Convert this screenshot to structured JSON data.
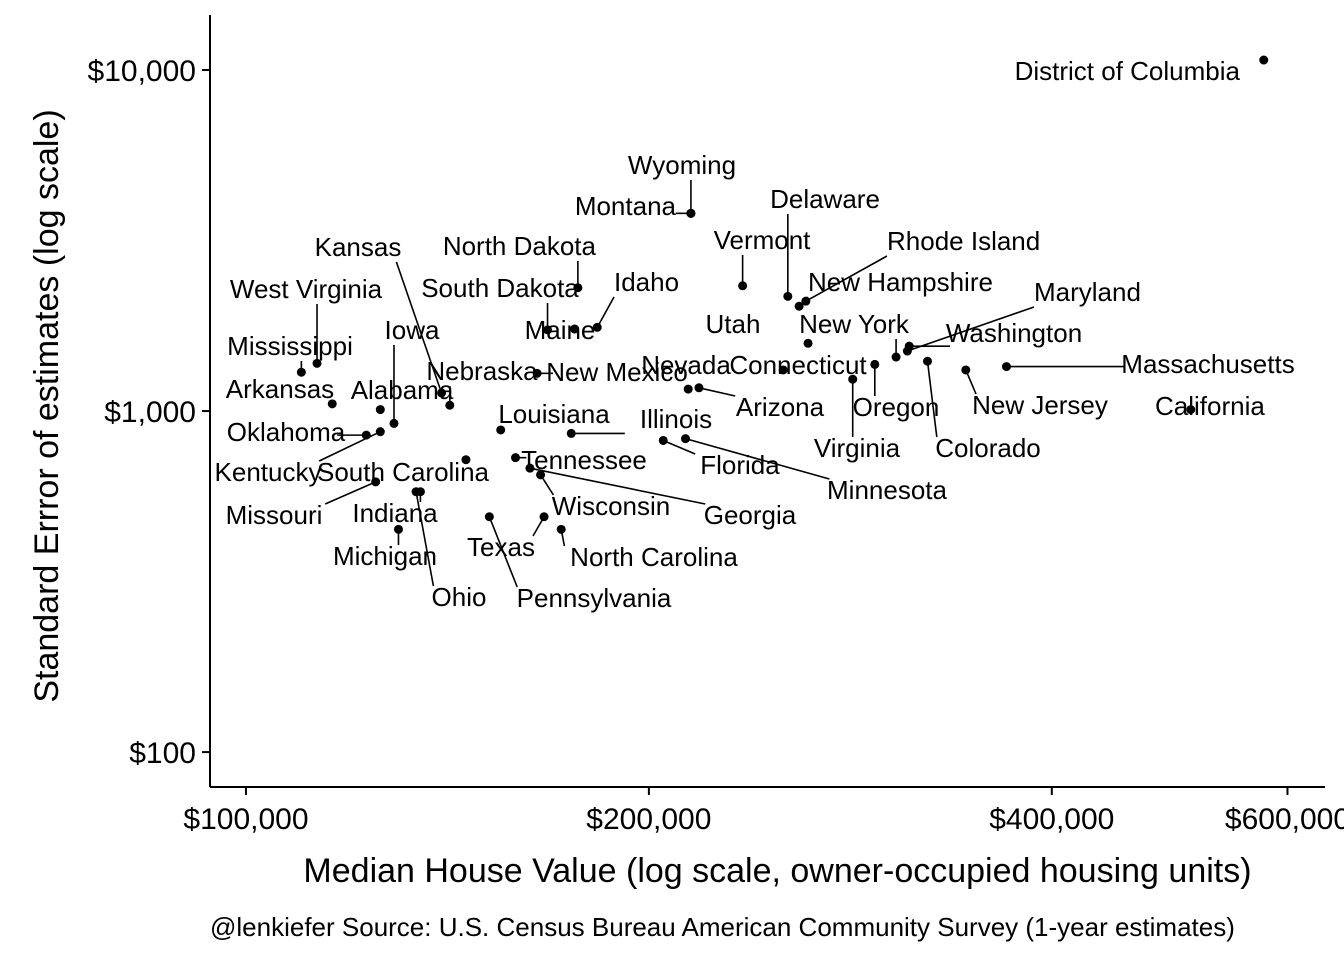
{
  "chart_data": {
    "type": "scatter",
    "title": "",
    "xlabel": "Median House Value (log scale, owner-occupied housing units)",
    "ylabel": "Standard Errror of estimates (log scale)",
    "caption": "@lenkiefer Source: U.S. Census Bureau American Community Survey (1-year estimates)",
    "x_scale": "log",
    "y_scale": "log",
    "xlim": [
      94000,
      640000
    ],
    "ylim": [
      79,
      14500
    ],
    "x_ticks": [
      {
        "value": 100000,
        "label": "$100,000"
      },
      {
        "value": 200000,
        "label": "$200,000"
      },
      {
        "value": 400000,
        "label": "$400,000"
      },
      {
        "value": 600000,
        "label": "$600,000"
      }
    ],
    "y_ticks": [
      {
        "value": 100,
        "label": "$100"
      },
      {
        "value": 1000,
        "label": "$1,000"
      },
      {
        "value": 10000,
        "label": "$10,000"
      }
    ],
    "grid": false,
    "point_color": "#000000",
    "points": [
      {
        "label": "District of Columbia",
        "x": 576000,
        "y": 10700
      },
      {
        "label": "Wyoming",
        "x": 215000,
        "y": 3800
      },
      {
        "label": "Montana",
        "x": 215000,
        "y": 3800
      },
      {
        "label": "Delaware",
        "x": 254000,
        "y": 2170
      },
      {
        "label": "Vermont",
        "x": 235000,
        "y": 2330
      },
      {
        "label": "Rhode Island",
        "x": 262000,
        "y": 2100
      },
      {
        "label": "New Hampshire",
        "x": 259000,
        "y": 2030
      },
      {
        "label": "North Dakota",
        "x": 177000,
        "y": 2300
      },
      {
        "label": "Idaho",
        "x": 183000,
        "y": 1760
      },
      {
        "label": "Kansas",
        "x": 140000,
        "y": 1130
      },
      {
        "label": "West Virginia",
        "x": 113000,
        "y": 1380
      },
      {
        "label": "South Dakota",
        "x": 168000,
        "y": 1730
      },
      {
        "label": "Maine",
        "x": 176000,
        "y": 1740
      },
      {
        "label": "Utah",
        "x": 263000,
        "y": 1580
      },
      {
        "label": "New York",
        "x": 306000,
        "y": 1440
      },
      {
        "label": "Maryland",
        "x": 312000,
        "y": 1500
      },
      {
        "label": "Washington",
        "x": 313000,
        "y": 1550
      },
      {
        "label": "Iowa",
        "x": 129000,
        "y": 920
      },
      {
        "label": "Mississippi",
        "x": 110000,
        "y": 1300
      },
      {
        "label": "Nebraska",
        "x": 142000,
        "y": 1040
      },
      {
        "label": "New Mexico",
        "x": 165000,
        "y": 1290
      },
      {
        "label": "Nevada",
        "x": 214000,
        "y": 1160
      },
      {
        "label": "Connecticut",
        "x": 252000,
        "y": 1320
      },
      {
        "label": "Massachusetts",
        "x": 370000,
        "y": 1350
      },
      {
        "label": "Arkansas",
        "x": 116000,
        "y": 1050
      },
      {
        "label": "Alabama",
        "x": 126000,
        "y": 1010
      },
      {
        "label": "Arizona",
        "x": 218000,
        "y": 1170
      },
      {
        "label": "Oregon",
        "x": 295000,
        "y": 1370
      },
      {
        "label": "New Jersey",
        "x": 345000,
        "y": 1320
      },
      {
        "label": "California",
        "x": 508000,
        "y": 1010
      },
      {
        "label": "Louisiana",
        "x": 155000,
        "y": 880
      },
      {
        "label": "Illinois",
        "x": 175000,
        "y": 860
      },
      {
        "label": "Oklahoma",
        "x": 123000,
        "y": 850
      },
      {
        "label": "Kentucky",
        "x": 126000,
        "y": 870
      },
      {
        "label": "Virginia",
        "x": 284000,
        "y": 1240
      },
      {
        "label": "Colorado",
        "x": 323000,
        "y": 1400
      },
      {
        "label": "Florida",
        "x": 205000,
        "y": 820
      },
      {
        "label": "Tennessee",
        "x": 159000,
        "y": 730
      },
      {
        "label": "South Carolina",
        "x": 146000,
        "y": 720
      },
      {
        "label": "Minnesota",
        "x": 213000,
        "y": 830
      },
      {
        "label": "Missouri",
        "x": 125000,
        "y": 620
      },
      {
        "label": "Indiana",
        "x": 135000,
        "y": 580
      },
      {
        "label": "Wisconsin",
        "x": 166000,
        "y": 650
      },
      {
        "label": "Georgia",
        "x": 163000,
        "y": 680
      },
      {
        "label": "Michigan",
        "x": 130000,
        "y": 450
      },
      {
        "label": "Texas",
        "x": 167000,
        "y": 490
      },
      {
        "label": "North Carolina",
        "x": 172000,
        "y": 450
      },
      {
        "label": "Ohio",
        "x": 134000,
        "y": 580
      },
      {
        "label": "Pennsylvania",
        "x": 152000,
        "y": 490
      }
    ]
  }
}
